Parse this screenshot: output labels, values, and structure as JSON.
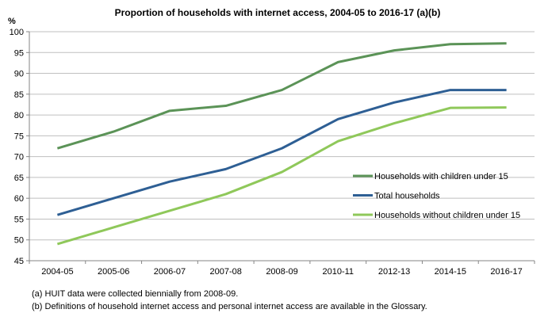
{
  "chart_data": {
    "type": "line",
    "title": "Proportion of households  with internet access,  2004-05  to 2016-17  (a)(b)",
    "ylabel": "%",
    "xlabel": "",
    "ylim": [
      45,
      100
    ],
    "yticks": [
      45,
      50,
      55,
      60,
      65,
      70,
      75,
      80,
      85,
      90,
      95,
      100
    ],
    "grid": true,
    "legend_position": "right-middle",
    "categories": [
      "2004-05",
      "2005-06",
      "2006-07",
      "2007-08",
      "2008-09",
      "2010-11",
      "2012-13",
      "2014-15",
      "2016-17"
    ],
    "series": [
      {
        "name": "Households with children under 15",
        "color": "#5b9357",
        "values": [
          72,
          76,
          81,
          82.2,
          86,
          92.7,
          95.5,
          97,
          97.2
        ]
      },
      {
        "name": "Total households",
        "color": "#2e5f94",
        "values": [
          56,
          60,
          64,
          67,
          72,
          79,
          83,
          86,
          86
        ]
      },
      {
        "name": "Households without children under 15",
        "color": "#8fc85a",
        "values": [
          49,
          53,
          57,
          61,
          66.3,
          73.7,
          78,
          81.7,
          81.8
        ]
      }
    ]
  },
  "footnotes": [
    "(a) HUIT data were collected biennially from 2008-09.",
    "(b) Definitions of household internet access and personal internet access are available in the Glossary."
  ]
}
